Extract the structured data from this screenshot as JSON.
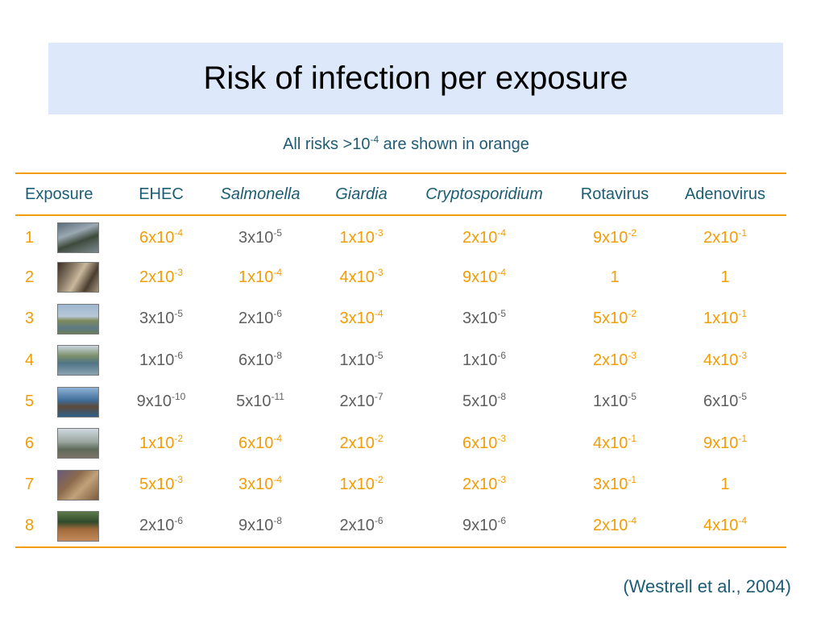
{
  "slide": {
    "title": "Risk of infection per exposure",
    "subtitle_pre": "All risks >10",
    "subtitle_exp": "-4",
    "subtitle_post": " are shown in orange",
    "citation": "(Westrell et al., 2004)"
  },
  "colors": {
    "highlight": "#f29d05",
    "normal": "#5f5f5f",
    "header": "#1c5c74",
    "title_bg": "#dde9fa"
  },
  "table": {
    "headers": [
      "Exposure",
      "EHEC",
      "Salmonella",
      "Giardia",
      "Cryptosporidium",
      "Rotavirus",
      "Adenovirus"
    ],
    "rows": [
      {
        "num": "1",
        "image": "wastewater-treatment-photo",
        "cells": [
          {
            "m": "6x10",
            "e": "-4",
            "hi": true
          },
          {
            "m": "3x10",
            "e": "-5",
            "hi": false
          },
          {
            "m": "1x10",
            "e": "-3",
            "hi": true
          },
          {
            "m": "2x10",
            "e": "-4",
            "hi": true
          },
          {
            "m": "9x10",
            "e": "-2",
            "hi": true
          },
          {
            "m": "2x10",
            "e": "-1",
            "hi": true
          }
        ]
      },
      {
        "num": "2",
        "image": "workers-photo",
        "cells": [
          {
            "m": "2x10",
            "e": "-3",
            "hi": true
          },
          {
            "m": "1x10",
            "e": "-4",
            "hi": true
          },
          {
            "m": "4x10",
            "e": "-3",
            "hi": true
          },
          {
            "m": "9x10",
            "e": "-4",
            "hi": true
          },
          {
            "m": "1",
            "e": "",
            "hi": true
          },
          {
            "m": "1",
            "e": "",
            "hi": true
          }
        ]
      },
      {
        "num": "3",
        "image": "coastal-landscape-photo",
        "cells": [
          {
            "m": "3x10",
            "e": "-5",
            "hi": false
          },
          {
            "m": "2x10",
            "e": "-6",
            "hi": false
          },
          {
            "m": "3x10",
            "e": "-4",
            "hi": true
          },
          {
            "m": "3x10",
            "e": "-5",
            "hi": false
          },
          {
            "m": "5x10",
            "e": "-2",
            "hi": true
          },
          {
            "m": "1x10",
            "e": "-1",
            "hi": true
          }
        ]
      },
      {
        "num": "4",
        "image": "river-photo",
        "cells": [
          {
            "m": "1x10",
            "e": "-6",
            "hi": false
          },
          {
            "m": "6x10",
            "e": "-8",
            "hi": false
          },
          {
            "m": "1x10",
            "e": "-5",
            "hi": false
          },
          {
            "m": "1x10",
            "e": "-6",
            "hi": false
          },
          {
            "m": "2x10",
            "e": "-3",
            "hi": true
          },
          {
            "m": "4x10",
            "e": "-3",
            "hi": true
          }
        ]
      },
      {
        "num": "5",
        "image": "swimmers-photo",
        "cells": [
          {
            "m": "9x10",
            "e": "-10",
            "hi": false
          },
          {
            "m": "5x10",
            "e": "-11",
            "hi": false
          },
          {
            "m": "2x10",
            "e": "-7",
            "hi": false
          },
          {
            "m": "5x10",
            "e": "-8",
            "hi": false
          },
          {
            "m": "1x10",
            "e": "-5",
            "hi": false
          },
          {
            "m": "6x10",
            "e": "-5",
            "hi": false
          }
        ]
      },
      {
        "num": "6",
        "image": "sewage-plant-photo",
        "cells": [
          {
            "m": "1x10",
            "e": "-2",
            "hi": true
          },
          {
            "m": "6x10",
            "e": "-4",
            "hi": true
          },
          {
            "m": "2x10",
            "e": "-2",
            "hi": true
          },
          {
            "m": "6x10",
            "e": "-3",
            "hi": true
          },
          {
            "m": "4x10",
            "e": "-1",
            "hi": true
          },
          {
            "m": "9x10",
            "e": "-1",
            "hi": true
          }
        ]
      },
      {
        "num": "7",
        "image": "sludge-handling-photo",
        "cells": [
          {
            "m": "5x10",
            "e": "-3",
            "hi": true
          },
          {
            "m": "3x10",
            "e": "-4",
            "hi": true
          },
          {
            "m": "1x10",
            "e": "-2",
            "hi": true
          },
          {
            "m": "2x10",
            "e": "-3",
            "hi": true
          },
          {
            "m": "3x10",
            "e": "-1",
            "hi": true
          },
          {
            "m": "1",
            "e": "",
            "hi": true
          }
        ]
      },
      {
        "num": "8",
        "image": "farm-field-photo",
        "cells": [
          {
            "m": "2x10",
            "e": "-6",
            "hi": false
          },
          {
            "m": "9x10",
            "e": "-8",
            "hi": false
          },
          {
            "m": "2x10",
            "e": "-6",
            "hi": false
          },
          {
            "m": "9x10",
            "e": "-6",
            "hi": false
          },
          {
            "m": "2x10",
            "e": "-4",
            "hi": true
          },
          {
            "m": "4x10",
            "e": "-4",
            "hi": true
          }
        ]
      }
    ]
  }
}
